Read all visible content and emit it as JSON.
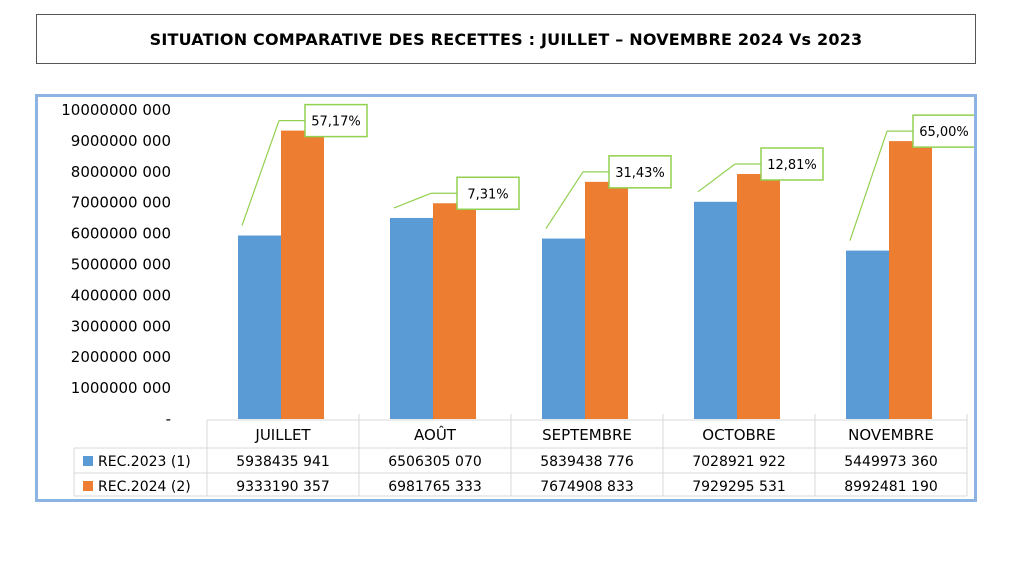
{
  "chart_data": {
    "type": "bar",
    "title": "SITUATION COMPARATIVE DES RECETTES : JUILLET – NOVEMBRE 2024 Vs 2023",
    "categories": [
      "JUILLET",
      "AOÛT",
      "SEPTEMBRE",
      "OCTOBRE",
      "NOVEMBRE"
    ],
    "series": [
      {
        "name": "REC.2023 (1)",
        "color": "#5b9bd5",
        "values": [
          5938435941,
          6506305070,
          5839438776,
          7028921922,
          5449973360
        ],
        "labels": [
          "5938435 941",
          "6506305 070",
          "5839438 776",
          "7028921 922",
          "5449973 360"
        ]
      },
      {
        "name": "REC.2024 (2)",
        "color": "#ed7d31",
        "values": [
          9333190357,
          6981765333,
          7674908833,
          7929295531,
          8992481190
        ],
        "labels": [
          "9333190 357",
          "6981765 333",
          "7674908 833",
          "7929295 531",
          "8992481 190"
        ]
      }
    ],
    "annotations": [
      "57,17%",
      "7,31%",
      "31,43%",
      "12,81%",
      "65,00%"
    ],
    "ylim": [
      0,
      10000000000
    ],
    "yticks": [
      {
        "value": 10000000000,
        "label": "10000000 000"
      },
      {
        "value": 9000000000,
        "label": "9000000 000"
      },
      {
        "value": 8000000000,
        "label": "8000000 000"
      },
      {
        "value": 7000000000,
        "label": "7000000 000"
      },
      {
        "value": 6000000000,
        "label": "6000000 000"
      },
      {
        "value": 5000000000,
        "label": "5000000 000"
      },
      {
        "value": 4000000000,
        "label": "4000000 000"
      },
      {
        "value": 3000000000,
        "label": "3000000 000"
      },
      {
        "value": 2000000000,
        "label": "2000000 000"
      },
      {
        "value": 1000000000,
        "label": "1000000 000"
      },
      {
        "value": 0,
        "label": "-"
      }
    ],
    "grid": false,
    "legend": "data-table-left",
    "annotation_color": "#92d050"
  }
}
